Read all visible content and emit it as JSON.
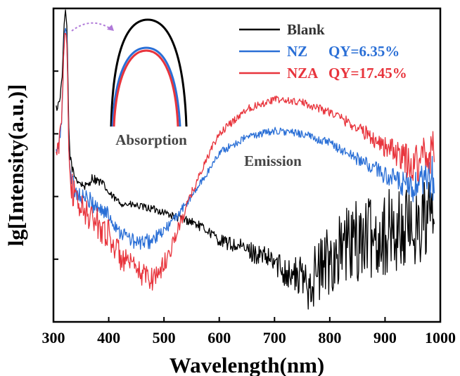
{
  "chart_data": {
    "type": "line",
    "xlabel": "Wavelength(nm)",
    "ylabel": "lg[Intensity(a.u.)]",
    "xlim": [
      300,
      1000
    ],
    "ylim": [
      0,
      10
    ],
    "x_ticks": [
      "300",
      "400",
      "500",
      "600",
      "700",
      "800",
      "900",
      "1000"
    ],
    "y_ticks_labeled": false,
    "grid": false,
    "legend_position": "top-right",
    "legend": [
      {
        "name": "Blank",
        "qy": "",
        "color": "#000000"
      },
      {
        "name": "NZ",
        "qy": "QY=6.35%",
        "color": "#2a6fd6"
      },
      {
        "name": "NZA",
        "qy": "QY=17.45%",
        "color": "#e8343c"
      }
    ],
    "annotations": [
      "Absorption",
      "Emission"
    ],
    "series": [
      {
        "name": "Blank",
        "color": "#000000",
        "x": [
          305,
          310,
          315,
          318,
          320,
          322,
          324,
          326,
          328,
          330,
          335,
          340,
          350,
          360,
          370,
          380,
          390,
          400,
          420,
          450,
          480,
          500,
          520,
          550,
          580,
          600,
          650,
          700,
          730,
          760,
          780,
          800,
          830,
          850,
          900,
          950,
          990
        ],
        "y": [
          6.8,
          7.0,
          7.6,
          8.8,
          9.7,
          9.9,
          9.5,
          8.0,
          6.0,
          5.3,
          4.8,
          4.6,
          4.4,
          4.3,
          4.6,
          4.5,
          4.4,
          4.1,
          3.8,
          3.7,
          3.6,
          3.5,
          3.35,
          3.2,
          2.9,
          2.6,
          2.3,
          1.9,
          1.5,
          1.3,
          1.6,
          2.0,
          2.4,
          2.6,
          2.8,
          3.0,
          3.4
        ],
        "noise": [
          0.15,
          0.15,
          0.15,
          0.1,
          0.1,
          0.1,
          0.1,
          0.1,
          0.15,
          0.15,
          0.15,
          0.15,
          0.15,
          0.15,
          0.15,
          0.15,
          0.12,
          0.12,
          0.12,
          0.12,
          0.12,
          0.12,
          0.12,
          0.15,
          0.15,
          0.2,
          0.3,
          0.4,
          0.6,
          0.9,
          1.1,
          1.2,
          1.3,
          1.3,
          1.4,
          1.4,
          1.4
        ]
      },
      {
        "name": "NZ",
        "color": "#2a6fd6",
        "x": [
          305,
          310,
          315,
          318,
          320,
          322,
          324,
          326,
          328,
          330,
          335,
          340,
          350,
          370,
          400,
          420,
          450,
          480,
          500,
          520,
          550,
          580,
          600,
          650,
          700,
          750,
          800,
          850,
          900,
          950,
          990
        ],
        "y": [
          5.4,
          5.6,
          6.5,
          8.2,
          9.2,
          9.4,
          9.2,
          7.5,
          5.5,
          4.9,
          4.4,
          4.2,
          4.0,
          3.8,
          3.4,
          2.9,
          2.5,
          2.6,
          2.9,
          3.3,
          4.0,
          4.8,
          5.4,
          5.9,
          6.1,
          6.0,
          5.7,
          5.2,
          4.7,
          4.2,
          4.6
        ],
        "noise": [
          0.2,
          0.2,
          0.2,
          0.15,
          0.1,
          0.1,
          0.1,
          0.1,
          0.2,
          0.2,
          0.3,
          0.3,
          0.3,
          0.3,
          0.3,
          0.25,
          0.25,
          0.25,
          0.2,
          0.15,
          0.12,
          0.12,
          0.12,
          0.12,
          0.12,
          0.12,
          0.15,
          0.2,
          0.3,
          0.5,
          0.8
        ]
      },
      {
        "name": "NZA",
        "color": "#e8343c",
        "x": [
          305,
          310,
          315,
          318,
          320,
          322,
          324,
          326,
          328,
          330,
          335,
          340,
          350,
          370,
          400,
          420,
          450,
          480,
          500,
          520,
          550,
          580,
          600,
          650,
          700,
          750,
          800,
          850,
          900,
          950,
          990
        ],
        "y": [
          5.3,
          5.6,
          6.6,
          8.3,
          9.1,
          9.3,
          9.1,
          7.4,
          5.4,
          4.7,
          4.1,
          3.9,
          3.6,
          3.3,
          2.8,
          2.1,
          1.6,
          1.4,
          1.8,
          2.7,
          4.1,
          5.3,
          6.0,
          6.8,
          7.1,
          7.0,
          6.7,
          6.2,
          5.6,
          5.0,
          5.6
        ],
        "noise": [
          0.3,
          0.3,
          0.3,
          0.2,
          0.1,
          0.1,
          0.1,
          0.1,
          0.3,
          0.4,
          0.5,
          0.5,
          0.5,
          0.5,
          0.5,
          0.45,
          0.4,
          0.4,
          0.35,
          0.25,
          0.15,
          0.12,
          0.12,
          0.12,
          0.12,
          0.12,
          0.15,
          0.2,
          0.35,
          0.6,
          0.9
        ]
      }
    ]
  }
}
